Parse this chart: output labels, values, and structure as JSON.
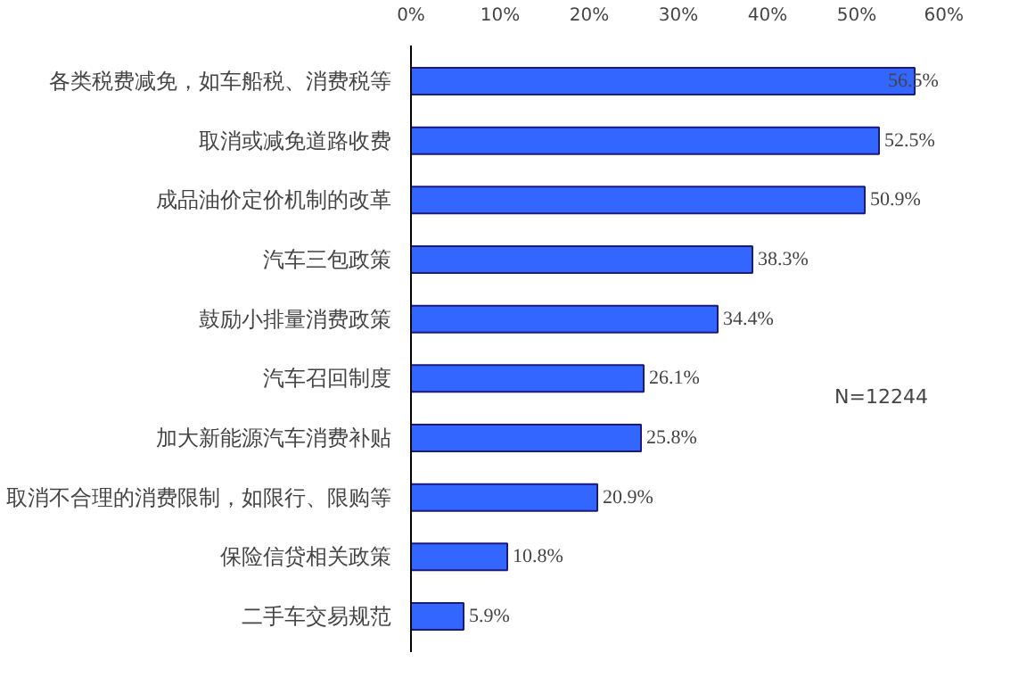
{
  "chart_data": {
    "type": "bar",
    "orientation": "horizontal",
    "categories": [
      "各类税费减免，如车船税、消费税等",
      "取消或减免道路收费",
      "成品油价定价机制的改革",
      "汽车三包政策",
      "鼓励小排量消费政策",
      "汽车召回制度",
      "加大新能源汽车消费补贴",
      "取消不合理的消费限制，如限行、限购等",
      "保险信贷相关政策",
      "二手车交易规范"
    ],
    "values": [
      56.5,
      52.5,
      50.9,
      38.3,
      34.4,
      26.1,
      25.8,
      20.9,
      10.8,
      5.9
    ],
    "value_labels": [
      "56.5%",
      "52.5%",
      "50.9%",
      "38.3%",
      "34.4%",
      "26.1%",
      "25.8%",
      "20.9%",
      "10.8%",
      "5.9%"
    ],
    "color": "#3366ff",
    "xlim": [
      0,
      60
    ],
    "xticks": [
      {
        "value": 0,
        "label": "0%"
      },
      {
        "value": 10,
        "label": "10%"
      },
      {
        "value": 20,
        "label": "20%"
      },
      {
        "value": 30,
        "label": "30%"
      },
      {
        "value": 40,
        "label": "40%"
      },
      {
        "value": 50,
        "label": "50%"
      },
      {
        "value": 60,
        "label": "60%"
      }
    ],
    "grid": false,
    "annotations": [
      "N=12244"
    ]
  }
}
